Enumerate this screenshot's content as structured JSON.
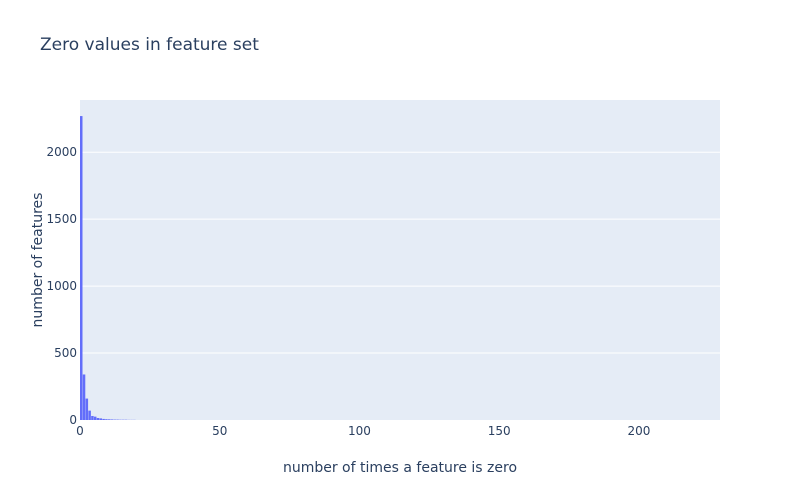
{
  "chart_data": {
    "type": "bar",
    "title": "Zero values in feature set",
    "xlabel": "number of times a feature is zero",
    "ylabel": "number of features",
    "xlim": [
      0,
      229
    ],
    "ylim": [
      0,
      2390
    ],
    "x_ticks": [
      0,
      50,
      100,
      150,
      200
    ],
    "y_ticks": [
      0,
      500,
      1000,
      1500,
      2000
    ],
    "bin_width": 1,
    "bins": [
      {
        "x": 0,
        "value": 2270
      },
      {
        "x": 1,
        "value": 340
      },
      {
        "x": 2,
        "value": 160
      },
      {
        "x": 3,
        "value": 70
      },
      {
        "x": 4,
        "value": 30
      },
      {
        "x": 5,
        "value": 25
      },
      {
        "x": 6,
        "value": 15
      },
      {
        "x": 7,
        "value": 12
      },
      {
        "x": 8,
        "value": 8
      },
      {
        "x": 9,
        "value": 6
      },
      {
        "x": 10,
        "value": 5
      },
      {
        "x": 11,
        "value": 4
      },
      {
        "x": 12,
        "value": 3
      },
      {
        "x": 13,
        "value": 3
      },
      {
        "x": 14,
        "value": 2
      },
      {
        "x": 15,
        "value": 2
      },
      {
        "x": 16,
        "value": 2
      },
      {
        "x": 17,
        "value": 1
      },
      {
        "x": 18,
        "value": 1
      },
      {
        "x": 19,
        "value": 1
      }
    ],
    "colors": {
      "bar": "#636efa",
      "plot_bg": "#e5ecf6",
      "grid": "#ffffff",
      "text": "#2a3f5f"
    },
    "grid": true
  }
}
